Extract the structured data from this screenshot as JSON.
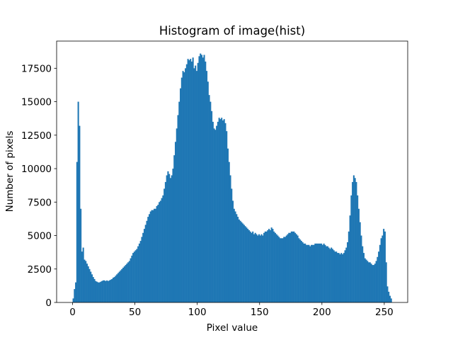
{
  "chart_data": {
    "type": "histogram",
    "title": "Histogram of image(hist)",
    "xlabel": "Pixel value",
    "ylabel": "Number of pixels",
    "color": "#1f77b4",
    "bins": [
      0,
      1,
      2,
      3,
      4,
      5,
      6,
      7,
      8,
      9,
      10,
      11,
      12,
      13,
      14,
      15,
      16,
      17,
      18,
      19,
      20,
      21,
      22,
      23,
      24,
      25,
      26,
      27,
      28,
      29,
      30,
      31,
      32,
      33,
      34,
      35,
      36,
      37,
      38,
      39,
      40,
      41,
      42,
      43,
      44,
      45,
      46,
      47,
      48,
      49,
      50,
      51,
      52,
      53,
      54,
      55,
      56,
      57,
      58,
      59,
      60,
      61,
      62,
      63,
      64,
      65,
      66,
      67,
      68,
      69,
      70,
      71,
      72,
      73,
      74,
      75,
      76,
      77,
      78,
      79,
      80,
      81,
      82,
      83,
      84,
      85,
      86,
      87,
      88,
      89,
      90,
      91,
      92,
      93,
      94,
      95,
      96,
      97,
      98,
      99,
      100,
      101,
      102,
      103,
      104,
      105,
      106,
      107,
      108,
      109,
      110,
      111,
      112,
      113,
      114,
      115,
      116,
      117,
      118,
      119,
      120,
      121,
      122,
      123,
      124,
      125,
      126,
      127,
      128,
      129,
      130,
      131,
      132,
      133,
      134,
      135,
      136,
      137,
      138,
      139,
      140,
      141,
      142,
      143,
      144,
      145,
      146,
      147,
      148,
      149,
      150,
      151,
      152,
      153,
      154,
      155,
      156,
      157,
      158,
      159,
      160,
      161,
      162,
      163,
      164,
      165,
      166,
      167,
      168,
      169,
      170,
      171,
      172,
      173,
      174,
      175,
      176,
      177,
      178,
      179,
      180,
      181,
      182,
      183,
      184,
      185,
      186,
      187,
      188,
      189,
      190,
      191,
      192,
      193,
      194,
      195,
      196,
      197,
      198,
      199,
      200,
      201,
      202,
      203,
      204,
      205,
      206,
      207,
      208,
      209,
      210,
      211,
      212,
      213,
      214,
      215,
      216,
      217,
      218,
      219,
      220,
      221,
      222,
      223,
      224,
      225,
      226,
      227,
      228,
      229,
      230,
      231,
      232,
      233,
      234,
      235,
      236,
      237,
      238,
      239,
      240,
      241,
      242,
      243,
      244,
      245,
      246,
      247,
      248,
      249,
      250,
      251,
      252,
      253,
      254,
      255,
      256
    ],
    "values": [
      300,
      1000,
      1500,
      10500,
      15000,
      13200,
      7000,
      3800,
      4100,
      3200,
      3100,
      2900,
      2700,
      2500,
      2300,
      2100,
      1900,
      1750,
      1600,
      1550,
      1500,
      1500,
      1550,
      1600,
      1650,
      1650,
      1600,
      1650,
      1600,
      1650,
      1700,
      1750,
      1850,
      1900,
      2000,
      2100,
      2200,
      2300,
      2400,
      2500,
      2600,
      2700,
      2800,
      2900,
      3000,
      3100,
      3300,
      3500,
      3700,
      3800,
      3900,
      4000,
      4200,
      4400,
      4600,
      4900,
      5200,
      5500,
      5800,
      6100,
      6400,
      6600,
      6800,
      6900,
      6900,
      7000,
      7000,
      7200,
      7300,
      7500,
      7600,
      7800,
      8000,
      8500,
      9000,
      9500,
      9800,
      9600,
      9300,
      9500,
      10000,
      11000,
      12000,
      13000,
      14000,
      15000,
      16000,
      16800,
      17300,
      17200,
      17500,
      17800,
      18200,
      18100,
      18200,
      18000,
      18300,
      17500,
      17700,
      17300,
      17900,
      18400,
      18600,
      18500,
      18300,
      18500,
      18000,
      17300,
      16500,
      15500,
      15000,
      14300,
      13500,
      13000,
      12900,
      13200,
      13500,
      13800,
      13700,
      13800,
      13600,
      13700,
      13400,
      12800,
      11500,
      10500,
      9500,
      8500,
      7600,
      7000,
      6800,
      6600,
      6400,
      6200,
      6100,
      6000,
      5900,
      5800,
      5700,
      5600,
      5500,
      5400,
      5300,
      5200,
      5300,
      5100,
      5200,
      5100,
      5000,
      5100,
      5000,
      5100,
      5000,
      5200,
      5300,
      5300,
      5400,
      5500,
      5400,
      5600,
      5500,
      5300,
      5200,
      5100,
      5000,
      4900,
      4800,
      4800,
      4800,
      4900,
      4900,
      5000,
      5100,
      5200,
      5200,
      5300,
      5300,
      5300,
      5200,
      5100,
      5000,
      4800,
      4700,
      4600,
      4500,
      4400,
      4400,
      4300,
      4300,
      4300,
      4200,
      4300,
      4300,
      4300,
      4400,
      4400,
      4400,
      4400,
      4400,
      4400,
      4300,
      4400,
      4300,
      4200,
      4200,
      4100,
      4000,
      4100,
      4000,
      3900,
      3800,
      3800,
      3700,
      3700,
      3600,
      3700,
      3600,
      3700,
      3900,
      4100,
      4500,
      5300,
      6500,
      8000,
      9000,
      9500,
      9300,
      9000,
      8000,
      7000,
      6000,
      5000,
      4200,
      3700,
      3300,
      3200,
      3100,
      3000,
      3000,
      2900,
      2800,
      2800,
      2900,
      3100,
      3400,
      3800,
      4300,
      4800,
      5000,
      5500,
      5300,
      3000,
      1200,
      800,
      500,
      300
    ],
    "xlim": [
      -12.8,
      268.8
    ],
    "xticks": [
      0,
      50,
      100,
      150,
      200,
      250
    ],
    "ylim": [
      0,
      19530
    ],
    "yticks": [
      0,
      2500,
      5000,
      7500,
      10000,
      12500,
      15000,
      17500
    ]
  }
}
